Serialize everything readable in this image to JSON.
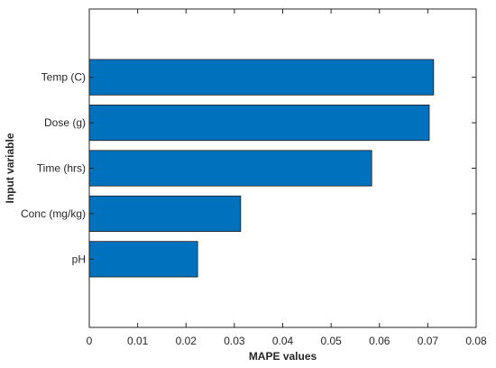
{
  "chart_data": {
    "type": "bar",
    "orientation": "horizontal",
    "categories": [
      "Temp (C)",
      "Dose (g)",
      "Time (hrs)",
      "Conc (mg/kg)",
      "pH"
    ],
    "values": [
      0.0712,
      0.0703,
      0.0584,
      0.0313,
      0.0224
    ],
    "xlabel": "MAPE values",
    "ylabel": "Input variable",
    "xlim": [
      0,
      0.08
    ],
    "xticks": [
      "0",
      "0.01",
      "0.02",
      "0.03",
      "0.04",
      "0.05",
      "0.06",
      "0.07",
      "0.08"
    ],
    "grid": false,
    "bar_color": "#0072BD",
    "bar_edge_color": "#1a1a1a"
  }
}
